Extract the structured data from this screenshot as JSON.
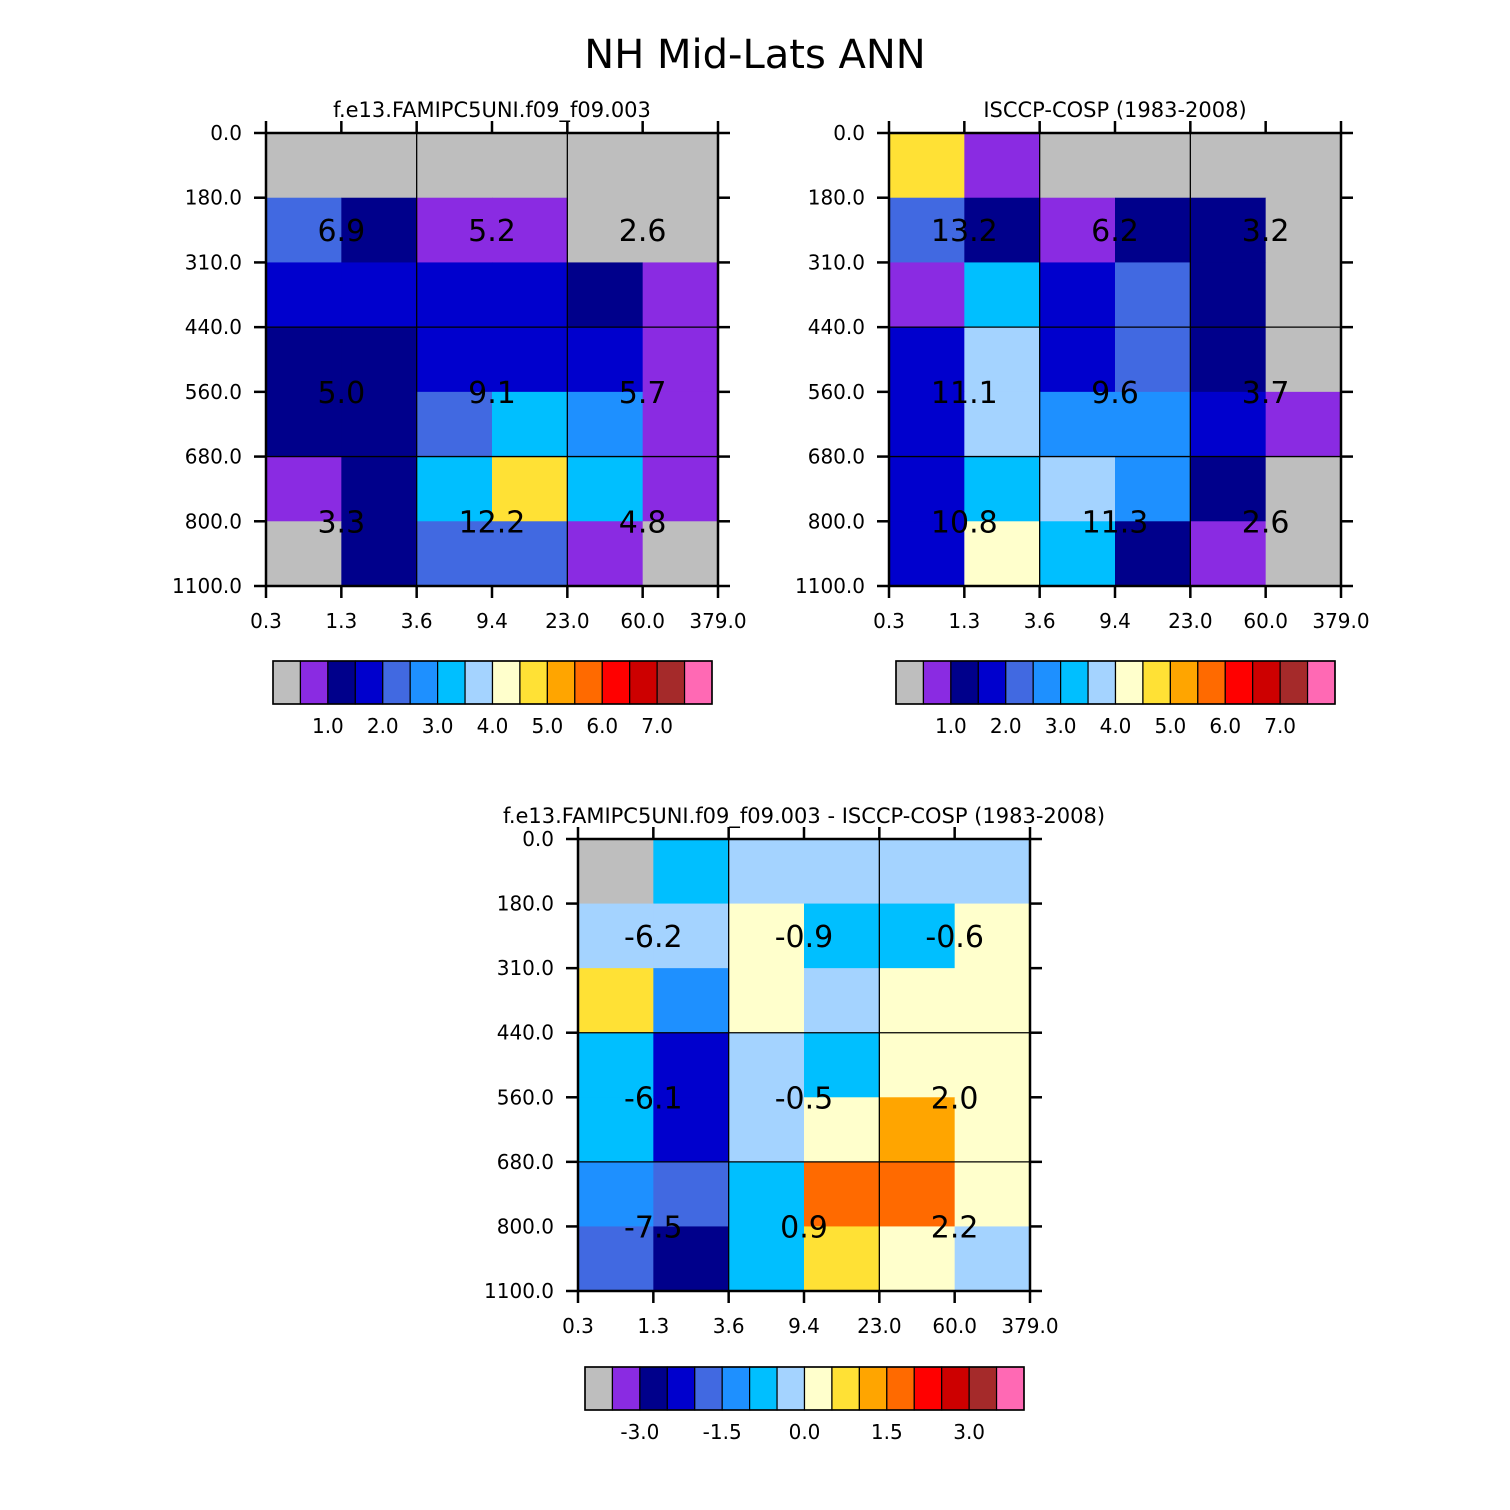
{
  "title": "NH Mid-Lats ANN",
  "chart_data": [
    {
      "type": "heatmap",
      "title": "f.e13.FAMIPC5UNI.f09_f09.003",
      "x_tick_labels": [
        "0.3",
        "1.3",
        "3.6",
        "9.4",
        "23.0",
        "60.0",
        "379.0"
      ],
      "y_tick_labels": [
        "0.0",
        "180.0",
        "310.0",
        "440.0",
        "560.0",
        "680.0",
        "800.0",
        "1100.0"
      ],
      "cell_colors": [
        [
          "#bebebe",
          "#bebebe",
          "#bebebe",
          "#bebebe",
          "#bebebe",
          "#bebebe"
        ],
        [
          "#4169e1",
          "#00008b",
          "#8a2be2",
          "#8a2be2",
          "#bebebe",
          "#bebebe"
        ],
        [
          "#0000cd",
          "#0000cd",
          "#0000cd",
          "#0000cd",
          "#00008b",
          "#8a2be2"
        ],
        [
          "#00008b",
          "#00008b",
          "#0000cd",
          "#0000cd",
          "#0000cd",
          "#8a2be2"
        ],
        [
          "#00008b",
          "#00008b",
          "#4169e1",
          "#00bfff",
          "#1e90ff",
          "#8a2be2"
        ],
        [
          "#8a2be2",
          "#00008b",
          "#00bfff",
          "#ffe135",
          "#00bfff",
          "#8a2be2"
        ],
        [
          "#bebebe",
          "#00008b",
          "#4169e1",
          "#4169e1",
          "#8a2be2",
          "#bebebe"
        ]
      ],
      "box_totals": [
        [
          "6.9",
          "5.2",
          "2.6"
        ],
        [
          "5.0",
          "9.1",
          "5.7"
        ],
        [
          "3.3",
          "12.2",
          "4.8"
        ]
      ],
      "colorbar": {
        "colors": [
          "#bebebe",
          "#8a2be2",
          "#00008b",
          "#0000cd",
          "#4169e1",
          "#1e90ff",
          "#00bfff",
          "#a4d3ff",
          "#ffffcc",
          "#ffe135",
          "#ffa500",
          "#ff6a00",
          "#ff0000",
          "#cd0000",
          "#a52a2a",
          "#ff69b4"
        ],
        "labels": [
          "1.0",
          "2.0",
          "3.0",
          "4.0",
          "5.0",
          "6.0",
          "7.0"
        ],
        "label_boundaries": [
          2,
          4,
          6,
          8,
          10,
          12,
          14
        ]
      }
    },
    {
      "type": "heatmap",
      "title": "ISCCP-COSP (1983-2008)",
      "x_tick_labels": [
        "0.3",
        "1.3",
        "3.6",
        "9.4",
        "23.0",
        "60.0",
        "379.0"
      ],
      "y_tick_labels": [
        "0.0",
        "180.0",
        "310.0",
        "440.0",
        "560.0",
        "680.0",
        "800.0",
        "1100.0"
      ],
      "cell_colors": [
        [
          "#ffe135",
          "#8a2be2",
          "#bebebe",
          "#bebebe",
          "#bebebe",
          "#bebebe"
        ],
        [
          "#4169e1",
          "#00008b",
          "#8a2be2",
          "#00008b",
          "#00008b",
          "#bebebe"
        ],
        [
          "#8a2be2",
          "#00bfff",
          "#0000cd",
          "#4169e1",
          "#00008b",
          "#bebebe"
        ],
        [
          "#0000cd",
          "#a4d3ff",
          "#0000cd",
          "#4169e1",
          "#00008b",
          "#bebebe"
        ],
        [
          "#0000cd",
          "#a4d3ff",
          "#1e90ff",
          "#1e90ff",
          "#0000cd",
          "#8a2be2"
        ],
        [
          "#0000cd",
          "#00bfff",
          "#a4d3ff",
          "#1e90ff",
          "#00008b",
          "#bebebe"
        ],
        [
          "#0000cd",
          "#ffffcc",
          "#00bfff",
          "#00008b",
          "#8a2be2",
          "#bebebe"
        ]
      ],
      "box_totals": [
        [
          "13.2",
          "6.2",
          "3.2"
        ],
        [
          "11.1",
          "9.6",
          "3.7"
        ],
        [
          "10.8",
          "11.3",
          "2.6"
        ]
      ],
      "colorbar": {
        "colors": [
          "#bebebe",
          "#8a2be2",
          "#00008b",
          "#0000cd",
          "#4169e1",
          "#1e90ff",
          "#00bfff",
          "#a4d3ff",
          "#ffffcc",
          "#ffe135",
          "#ffa500",
          "#ff6a00",
          "#ff0000",
          "#cd0000",
          "#a52a2a",
          "#ff69b4"
        ],
        "labels": [
          "1.0",
          "2.0",
          "3.0",
          "4.0",
          "5.0",
          "6.0",
          "7.0"
        ],
        "label_boundaries": [
          2,
          4,
          6,
          8,
          10,
          12,
          14
        ]
      }
    },
    {
      "type": "heatmap",
      "title": "f.e13.FAMIPC5UNI.f09_f09.003 - ISCCP-COSP (1983-2008)",
      "x_tick_labels": [
        "0.3",
        "1.3",
        "3.6",
        "9.4",
        "23.0",
        "60.0",
        "379.0"
      ],
      "y_tick_labels": [
        "0.0",
        "180.0",
        "310.0",
        "440.0",
        "560.0",
        "680.0",
        "800.0",
        "1100.0"
      ],
      "cell_colors": [
        [
          "#bebebe",
          "#00bfff",
          "#a4d3ff",
          "#a4d3ff",
          "#a4d3ff",
          "#a4d3ff"
        ],
        [
          "#a4d3ff",
          "#a4d3ff",
          "#ffffcc",
          "#00bfff",
          "#00bfff",
          "#ffffcc"
        ],
        [
          "#ffe135",
          "#1e90ff",
          "#ffffcc",
          "#a4d3ff",
          "#ffffcc",
          "#ffffcc"
        ],
        [
          "#00bfff",
          "#0000cd",
          "#a4d3ff",
          "#00bfff",
          "#ffffcc",
          "#ffffcc"
        ],
        [
          "#00bfff",
          "#0000cd",
          "#a4d3ff",
          "#ffffcc",
          "#ffa500",
          "#ffffcc"
        ],
        [
          "#1e90ff",
          "#4169e1",
          "#00bfff",
          "#ff6a00",
          "#ff6a00",
          "#ffffcc"
        ],
        [
          "#4169e1",
          "#00008b",
          "#00bfff",
          "#ffe135",
          "#ffffcc",
          "#a4d3ff"
        ]
      ],
      "box_totals": [
        [
          "-6.2",
          "-0.9",
          "-0.6"
        ],
        [
          "-6.1",
          "-0.5",
          "2.0"
        ],
        [
          "-7.5",
          "0.9",
          "2.2"
        ]
      ],
      "colorbar": {
        "colors": [
          "#bebebe",
          "#8a2be2",
          "#00008b",
          "#0000cd",
          "#4169e1",
          "#1e90ff",
          "#00bfff",
          "#a4d3ff",
          "#ffffcc",
          "#ffe135",
          "#ffa500",
          "#ff6a00",
          "#ff0000",
          "#cd0000",
          "#a52a2a",
          "#ff69b4"
        ],
        "labels": [
          "-3.0",
          "-1.5",
          "0.0",
          "1.5",
          "3.0"
        ],
        "label_boundaries": [
          2,
          5,
          8,
          11,
          14
        ]
      }
    }
  ]
}
